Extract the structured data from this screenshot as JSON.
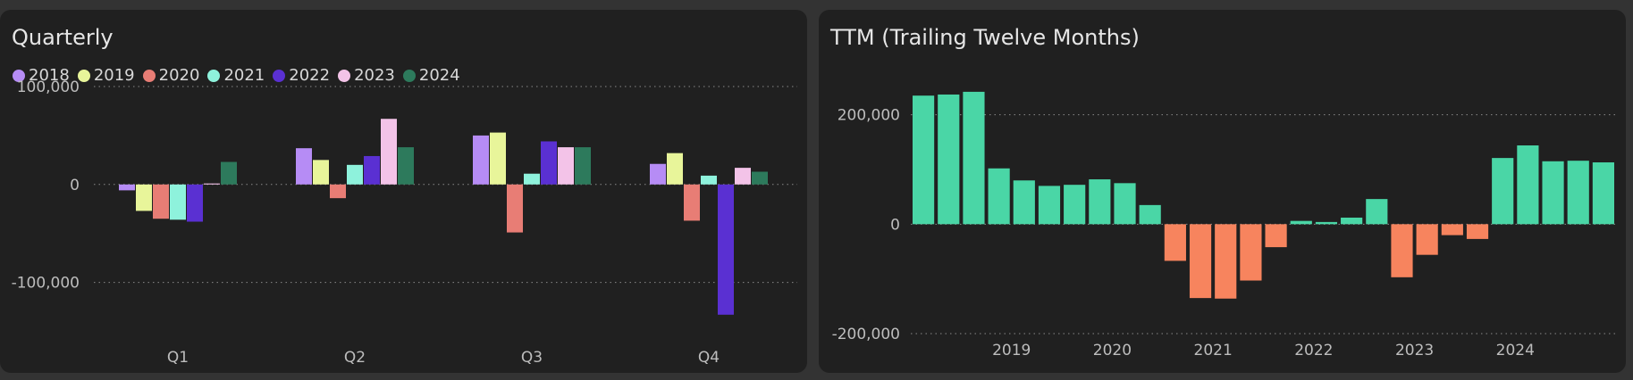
{
  "panels": {
    "quarterly": {
      "title": "Quarterly",
      "chart_data": {
        "type": "bar",
        "categories": [
          "Q1",
          "Q2",
          "Q3",
          "Q4"
        ],
        "series": [
          {
            "name": "2018",
            "color": "#b68cf5",
            "values": [
              -6000,
              37000,
              50000,
              21000
            ]
          },
          {
            "name": "2019",
            "color": "#e8f59a",
            "values": [
              -27000,
              25000,
              53000,
              32000
            ]
          },
          {
            "name": "2020",
            "color": "#e87d75",
            "values": [
              -35000,
              -14000,
              -49000,
              -37000
            ]
          },
          {
            "name": "2021",
            "color": "#8ef2dc",
            "values": [
              -36000,
              20000,
              11000,
              9000
            ]
          },
          {
            "name": "2022",
            "color": "#5a30d2",
            "values": [
              -38000,
              29000,
              44000,
              -133000
            ]
          },
          {
            "name": "2023",
            "color": "#f3c3e8",
            "values": [
              1000,
              67000,
              38000,
              17000
            ]
          },
          {
            "name": "2024",
            "color": "#2d7a5c",
            "values": [
              23000,
              38000,
              38000,
              13000
            ]
          }
        ],
        "ylim": [
          -135000,
          100000
        ],
        "yticks": [
          100000,
          0,
          -100000
        ],
        "ytick_labels": [
          "100,000",
          "0",
          "-100,000"
        ],
        "legend_position": "top-left",
        "grid": true
      }
    },
    "ttm": {
      "title": "TTM (Trailing Twelve Months)",
      "chart_data": {
        "type": "bar",
        "positive_color": "#4ad6a6",
        "negative_color": "#f7845e",
        "values": [
          235000,
          237000,
          242000,
          102000,
          80000,
          70000,
          72000,
          82000,
          75000,
          35000,
          -67000,
          -135000,
          -136000,
          -103000,
          -42000,
          6000,
          4000,
          12000,
          46000,
          -97000,
          -56000,
          -20000,
          -27000,
          121000,
          144000,
          115000,
          116000,
          113000
        ],
        "xtick_labels": [
          "2019",
          "2020",
          "2021",
          "2022",
          "2023",
          "2024"
        ],
        "xtick_bar_index": [
          3.5,
          7.5,
          11.5,
          15.5,
          19.5,
          23.5
        ],
        "ylim": [
          -200000,
          250000
        ],
        "yticks": [
          200000,
          0,
          -200000
        ],
        "ytick_labels": [
          "200,000",
          "0",
          "-200,000"
        ],
        "grid": true
      }
    }
  }
}
